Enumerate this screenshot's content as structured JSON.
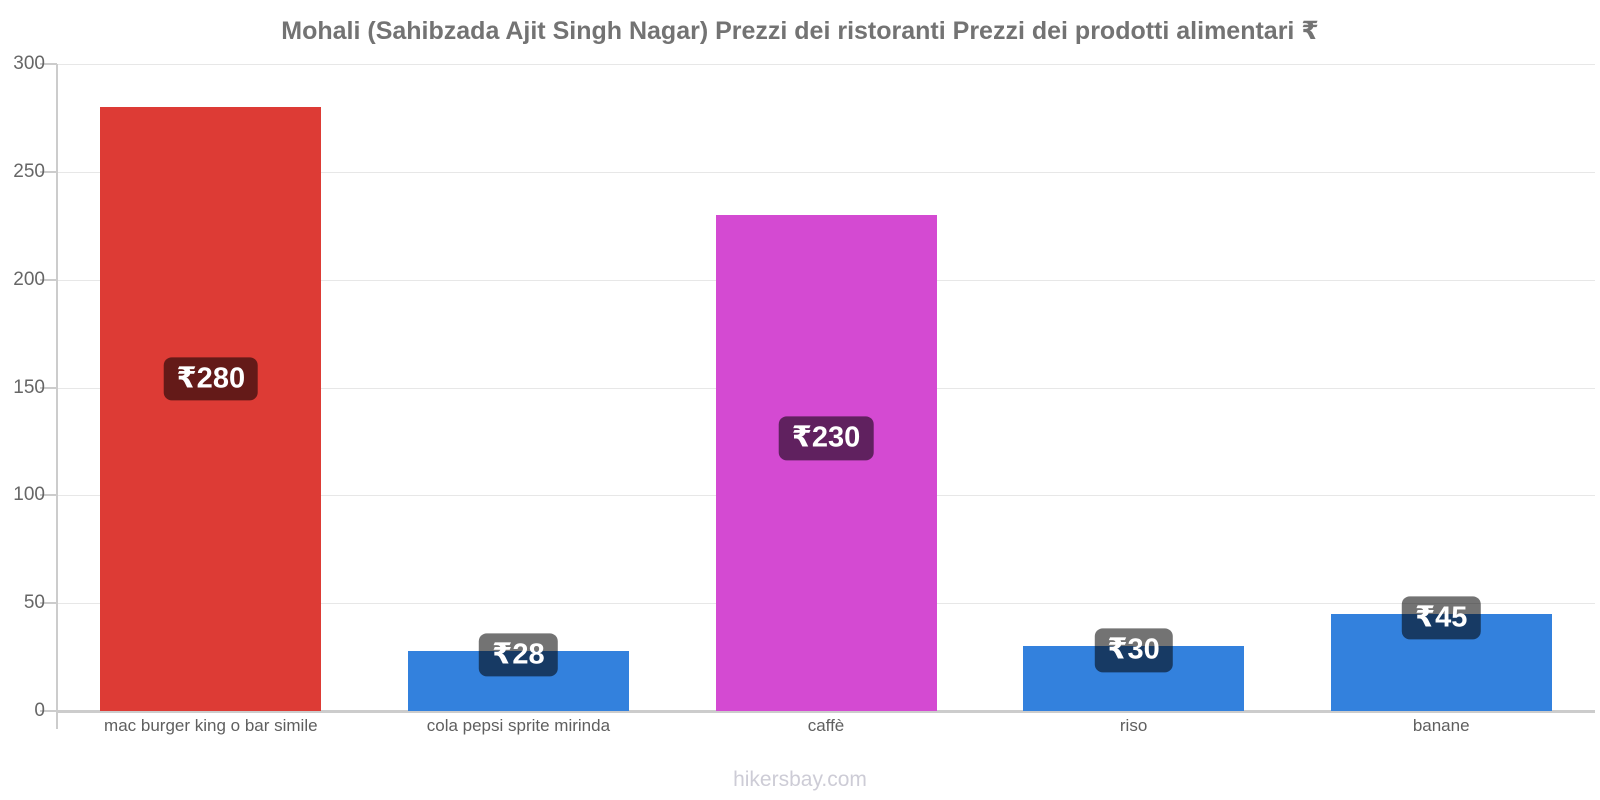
{
  "title": "Mohali (Sahibzada Ajit Singh Nagar) Prezzi dei ristoranti Prezzi dei prodotti alimentari ₹",
  "footer": "hikersbay.com",
  "chart_data": {
    "type": "bar",
    "title": "Mohali (Sahibzada Ajit Singh Nagar) Prezzi dei ristoranti Prezzi dei prodotti alimentari ₹",
    "categories": [
      "mac burger king o bar simile",
      "cola pepsi sprite mirinda",
      "caffè",
      "riso",
      "banane"
    ],
    "values": [
      280,
      28,
      230,
      30,
      45
    ],
    "value_labels": [
      "₹280",
      "₹28",
      "₹230",
      "₹30",
      "₹45"
    ],
    "currency_symbol": "₹",
    "bar_colors": [
      "#dd3b35",
      "#3381dd",
      "#d44ad2",
      "#3381dd",
      "#3381dd"
    ],
    "xlabel": "",
    "ylabel": "",
    "ylim": [
      0,
      300
    ],
    "yticks": [
      0,
      50,
      100,
      150,
      200,
      250,
      300
    ],
    "grid": true,
    "legend": false,
    "colors": {
      "badge_background": "rgba(0,0,0,0.55)",
      "badge_text": "#ffffff",
      "axis": "#cccccc",
      "grid": "#e7e7e7",
      "tick_text": "#666666",
      "category_text": "#5f5f5f",
      "title_text": "#737373",
      "watermark_text": "#cdccd6",
      "background": "#ffffff"
    }
  }
}
